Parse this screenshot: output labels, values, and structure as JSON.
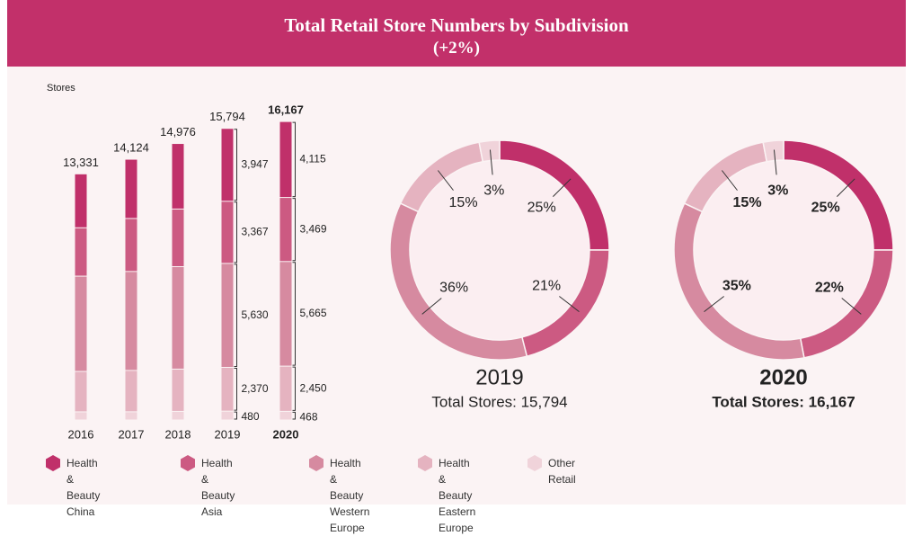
{
  "header": {
    "title": "Total Retail Store Numbers by Subdivision",
    "subtitle": "(+2%)"
  },
  "chart_data": [
    {
      "type": "bar",
      "stacked": true,
      "y_label": "Stores",
      "categories": [
        "2016",
        "2017",
        "2018",
        "2019",
        "2020"
      ],
      "totals": [
        13331,
        14124,
        14976,
        15794,
        16167
      ],
      "total_labels": [
        "13,331",
        "14,124",
        "14,976",
        "15,794",
        "16,167"
      ],
      "ylim": [
        0,
        17000
      ],
      "series": [
        {
          "name": "Health & Beauty China",
          "color": "#c0306a",
          "values": [
            2920,
            3210,
            3550,
            3947,
            4115
          ],
          "value_labels": [
            null,
            null,
            null,
            "3,947",
            "4,115"
          ]
        },
        {
          "name": "Health & Beauty Asia",
          "color": "#cc5a82",
          "values": [
            2620,
            2870,
            3120,
            3367,
            3469
          ],
          "value_labels": [
            null,
            null,
            null,
            "3,367",
            "3,469"
          ]
        },
        {
          "name": "Health & Beauty Western Europe",
          "color": "#d68aa0",
          "values": [
            5160,
            5360,
            5550,
            5630,
            5665
          ],
          "value_labels": [
            null,
            null,
            null,
            "5,630",
            "5,665"
          ]
        },
        {
          "name": "Health & Beauty Eastern Europe",
          "color": "#e5b3c0",
          "values": [
            2190,
            2240,
            2290,
            2370,
            2450
          ],
          "value_labels": [
            null,
            null,
            null,
            "2,370",
            "2,450"
          ]
        },
        {
          "name": "Other Retail",
          "color": "#f0d3da",
          "values": [
            441,
            444,
            466,
            480,
            468
          ],
          "value_labels": [
            null,
            null,
            null,
            "480",
            "468"
          ]
        }
      ]
    },
    {
      "type": "pie",
      "title": "2019",
      "subtitle": "Total Stores: 15,794",
      "values": [
        25,
        21,
        36,
        15,
        3
      ],
      "value_labels": [
        "25%",
        "21%",
        "36%",
        "15%",
        "3%"
      ],
      "colors": [
        "#c0306a",
        "#cc5a82",
        "#d68aa0",
        "#e5b3c0",
        "#f0d3da"
      ]
    },
    {
      "type": "pie",
      "title": "2020",
      "subtitle": "Total Stores: 16,167",
      "values": [
        25,
        22,
        35,
        15,
        3
      ],
      "value_labels": [
        "25%",
        "22%",
        "35%",
        "15%",
        "3%"
      ],
      "colors": [
        "#c0306a",
        "#cc5a82",
        "#d68aa0",
        "#e5b3c0",
        "#f0d3da"
      ]
    }
  ]
}
